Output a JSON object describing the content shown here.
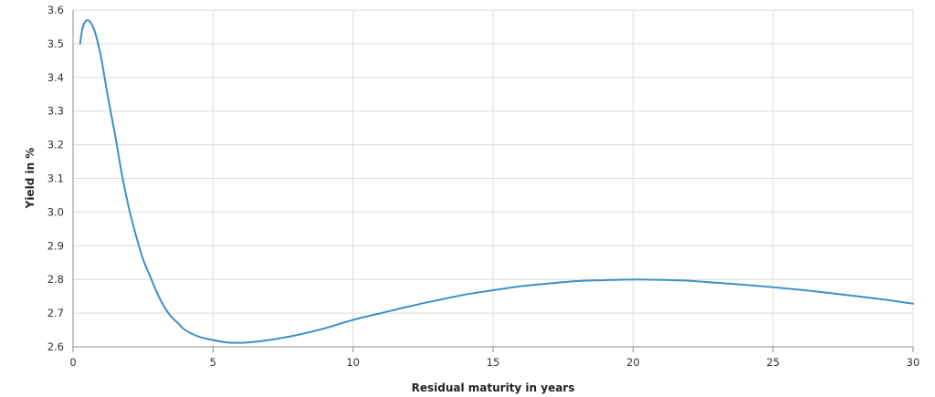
{
  "chart_data": {
    "type": "line",
    "xlabel": "Residual maturity in years",
    "ylabel": "Yield in %",
    "xlim": [
      0,
      30
    ],
    "ylim": [
      2.6,
      3.6
    ],
    "x_ticks": [
      "0",
      "5",
      "10",
      "15",
      "20",
      "25",
      "30"
    ],
    "y_ticks": [
      "2.6",
      "2.7",
      "2.8",
      "2.9",
      "3.0",
      "3.1",
      "3.2",
      "3.3",
      "3.4",
      "3.5",
      "3.6"
    ],
    "grid": true,
    "series": [
      {
        "color": "#3d8fc6",
        "x": [
          0.25,
          0.35,
          0.5,
          0.65,
          0.8,
          1.0,
          1.25,
          1.5,
          1.75,
          2.0,
          2.25,
          2.5,
          2.75,
          3.0,
          3.25,
          3.5,
          3.75,
          4.0,
          4.5,
          5.0,
          5.5,
          6.0,
          6.5,
          7.0,
          7.5,
          8.0,
          9.0,
          10.0,
          11.0,
          12.0,
          13.0,
          14.0,
          15.0,
          16.0,
          17.0,
          18.0,
          19.0,
          20.0,
          21.0,
          22.0,
          23.0,
          24.0,
          25.0,
          26.0,
          27.0,
          28.0,
          29.0,
          30.0
        ],
        "values": [
          3.5,
          3.55,
          3.57,
          3.56,
          3.53,
          3.46,
          3.34,
          3.23,
          3.11,
          3.01,
          2.93,
          2.86,
          2.81,
          2.76,
          2.72,
          2.69,
          2.67,
          2.65,
          2.63,
          2.62,
          2.613,
          2.612,
          2.615,
          2.62,
          2.627,
          2.635,
          2.655,
          2.68,
          2.7,
          2.72,
          2.738,
          2.755,
          2.768,
          2.78,
          2.788,
          2.795,
          2.798,
          2.8,
          2.799,
          2.796,
          2.79,
          2.784,
          2.777,
          2.769,
          2.76,
          2.75,
          2.74,
          2.728
        ]
      }
    ]
  },
  "colors": {
    "line": "#3d8fc6",
    "grid": "#dcdcdc",
    "axis": "#8c8c8c"
  }
}
